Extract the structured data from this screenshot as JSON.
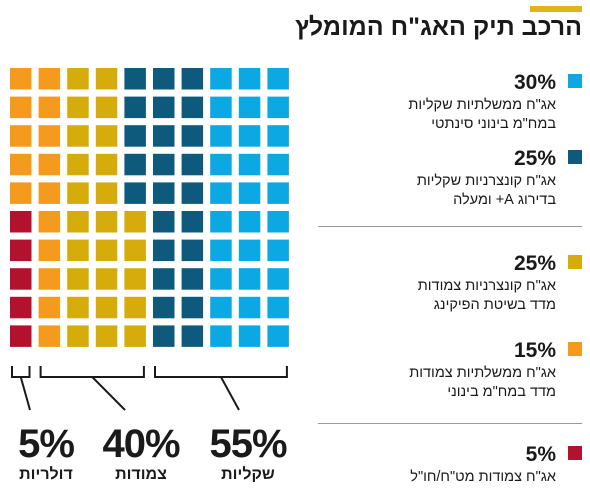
{
  "title": "הרכב תיק האג\"ח המומלץ",
  "colors": {
    "accent": "#e1b41a",
    "light_blue": "#0ca8e4",
    "dark_blue": "#0e5a7c",
    "gold": "#d6ab0c",
    "orange": "#f49b1e",
    "red": "#b3122e"
  },
  "chart_data": {
    "type": "waffle",
    "title": "הרכב תיק האג\"ח המומלץ",
    "grid": {
      "rows": 10,
      "cols": 10,
      "total_cells": 100
    },
    "series": [
      {
        "name": "אג\"ח ממשלתיות שקליות במח\"מ בינוני סינתטי",
        "value": 30,
        "color": "#0ca8e4"
      },
      {
        "name": "אג\"ח קונצרניות שקליות בדירוג A+ ומעלה",
        "value": 25,
        "color": "#0e5a7c"
      },
      {
        "name": "אג\"ח קונצרניות צמודות מדד בשיטת הפיקינג",
        "value": 25,
        "color": "#d6ab0c"
      },
      {
        "name": "אג\"ח ממשלתיות צמודות מדד במח\"מ בינוני",
        "value": 15,
        "color": "#f49b1e"
      },
      {
        "name": "אג\"ח צמודות מט\"ח/חו\"ל",
        "value": 5,
        "color": "#b3122e"
      }
    ],
    "groups": [
      {
        "label": "שקליות",
        "value_label": "55%",
        "value": 55
      },
      {
        "label": "צמודות",
        "value_label": "40%",
        "value": 40
      },
      {
        "label": "דולריות",
        "value_label": "5%",
        "value": 5
      }
    ]
  },
  "legend": [
    {
      "pct": "30%",
      "line1": "אג\"ח ממשלתיות שקליות",
      "line2": "במח\"מ בינוני סינתטי",
      "color": "#0ca8e4"
    },
    {
      "pct": "25%",
      "line1": "אג\"ח קונצרניות שקליות",
      "line2": "בדירוג A+ ומעלה",
      "color": "#0e5a7c"
    },
    {
      "pct": "25%",
      "line1": "אג\"ח קונצרניות צמודות",
      "line2": "מדד בשיטת הפיקינג",
      "color": "#d6ab0c"
    },
    {
      "pct": "15%",
      "line1": "אג\"ח ממשלתיות צמודות",
      "line2": "מדד במח\"מ בינוני",
      "color": "#f49b1e"
    },
    {
      "pct": "5%",
      "line1": "אג\"ח צמודות מט\"ח/חו\"ל",
      "line2": "",
      "color": "#b3122e"
    }
  ],
  "totals": [
    {
      "pct": "55%",
      "label": "שקליות"
    },
    {
      "pct": "40%",
      "label": "צמודות"
    },
    {
      "pct": "5%",
      "label": "דולריות"
    }
  ]
}
